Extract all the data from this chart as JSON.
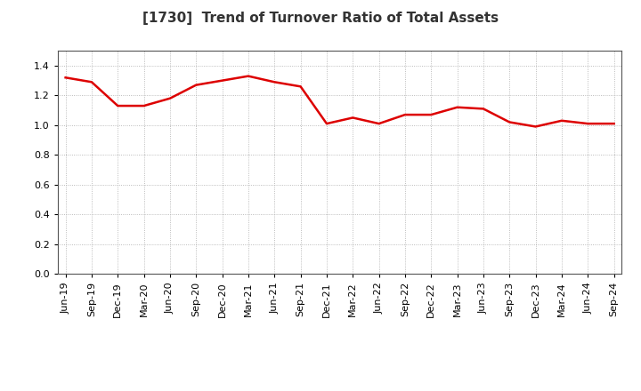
{
  "title": "[1730]  Trend of Turnover Ratio of Total Assets",
  "line_color": "#dd0000",
  "line_width": 1.8,
  "background_color": "#ffffff",
  "grid_color": "#aaaaaa",
  "ylim": [
    0.0,
    1.5
  ],
  "yticks": [
    0.0,
    0.2,
    0.4,
    0.6,
    0.8,
    1.0,
    1.2,
    1.4
  ],
  "x_labels": [
    "Jun-19",
    "Sep-19",
    "Dec-19",
    "Mar-20",
    "Jun-20",
    "Sep-20",
    "Dec-20",
    "Mar-21",
    "Jun-21",
    "Sep-21",
    "Dec-21",
    "Mar-22",
    "Jun-22",
    "Sep-22",
    "Dec-22",
    "Mar-23",
    "Jun-23",
    "Sep-23",
    "Dec-23",
    "Mar-24",
    "Jun-24",
    "Sep-24"
  ],
  "values": [
    1.32,
    1.29,
    1.13,
    1.13,
    1.18,
    1.27,
    1.3,
    1.33,
    1.29,
    1.26,
    1.01,
    1.05,
    1.01,
    1.07,
    1.07,
    1.12,
    1.11,
    1.02,
    0.99,
    1.03,
    1.01,
    1.01
  ],
  "title_fontsize": 11,
  "tick_fontsize": 8,
  "plot_bg_color": "#ffffff"
}
